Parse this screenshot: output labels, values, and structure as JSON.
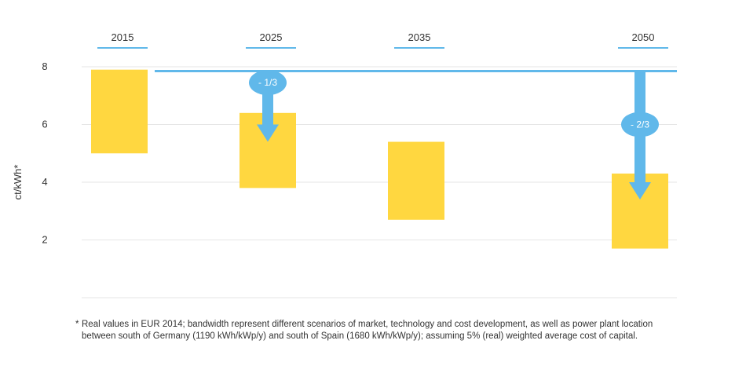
{
  "chart_data": {
    "type": "bar",
    "subtype": "floating-range",
    "categories": [
      "2015",
      "2025",
      "2035",
      "2050"
    ],
    "ranges": [
      {
        "category": "2015",
        "low": 5.0,
        "high": 7.9
      },
      {
        "category": "2025",
        "low": 3.8,
        "high": 6.4
      },
      {
        "category": "2035",
        "low": 2.7,
        "high": 5.4
      },
      {
        "category": "2050",
        "low": 1.7,
        "high": 4.3
      }
    ],
    "reference_line": {
      "value": 7.85
    },
    "annotations": [
      {
        "category": "2025",
        "label": "- 1/3",
        "from": 7.85,
        "to": 5.4,
        "badge_at": 7.45
      },
      {
        "category": "2050",
        "label": "- 2/3",
        "from": 7.85,
        "to": 3.4,
        "badge_at": 6.0
      }
    ],
    "ylabel": "ct/kWh*",
    "yticks": [
      2,
      4,
      6,
      8
    ],
    "ylim": [
      0,
      8
    ],
    "grid": true,
    "colors": {
      "bar": "#FFD740",
      "line": "#60B8EA",
      "grid": "#E6E6E6",
      "text": "#333333"
    }
  },
  "footnote": {
    "marker": "*",
    "text": "Real values in EUR 2014; bandwidth represent different scenarios of market, technology and cost development, as well as power plant location between south of Germany (1190 kWh/kWp/y) and south of Spain (1680 kWh/kWp/y); assuming 5% (real) weighted average cost of capital."
  }
}
